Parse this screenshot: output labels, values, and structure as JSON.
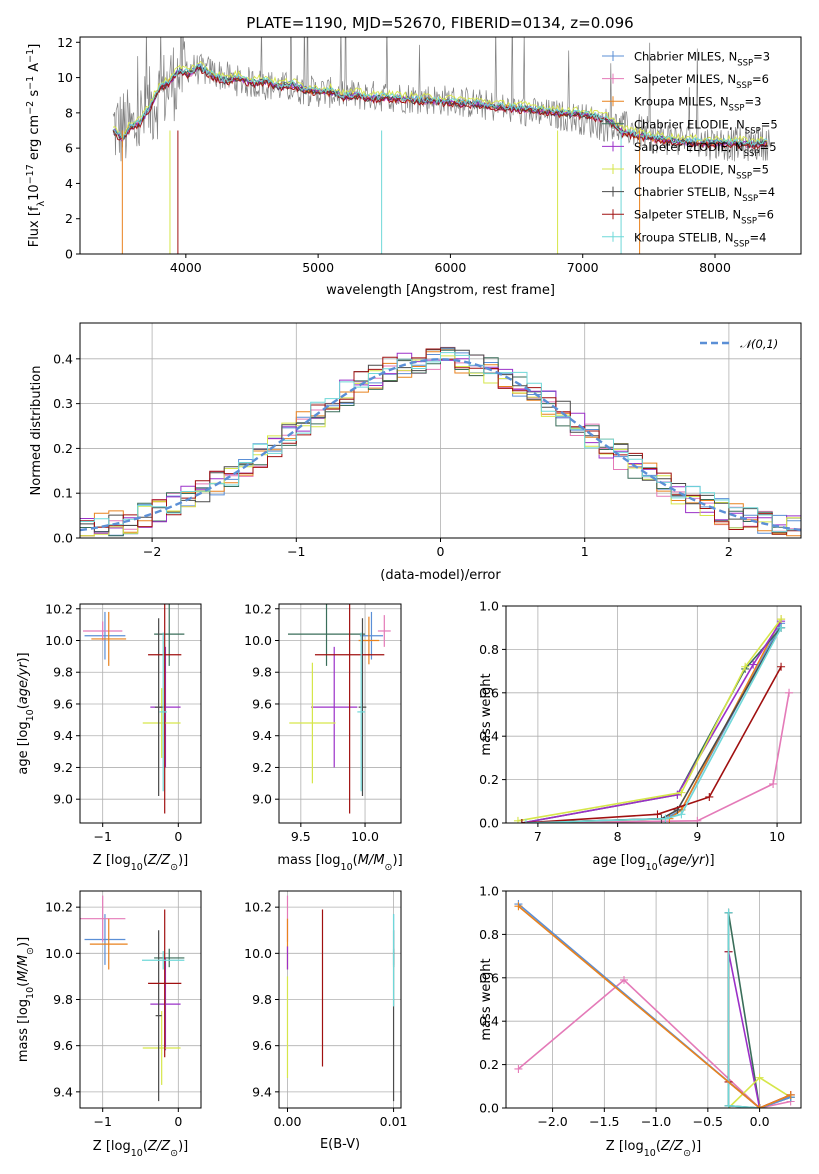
{
  "page_title": "PLATE=1190, MJD=52670, FIBERID=0134, z=0.096",
  "colors": {
    "Chabrier MILES": "#5b8fd6",
    "Salpeter MILES": "#e47ab8",
    "Kroupa MILES": "#e8821e",
    "Chabrier ELODIE": "#3a6e5a",
    "Salpeter ELODIE": "#9b30c8",
    "Kroupa ELODIE": "#d6e64a",
    "Chabrier STELIB": "#4a4a4a",
    "Salpeter STELIB": "#a01010",
    "Kroupa STELIB": "#6fd8d8"
  },
  "legend_labels": [
    {
      "name": "Chabrier MILES",
      "pre": "Chabrier MILES, N",
      "n": "3"
    },
    {
      "name": "Salpeter MILES",
      "pre": "Salpeter MILES, N",
      "n": "6"
    },
    {
      "name": "Kroupa MILES",
      "pre": "Kroupa MILES, N",
      "n": "3"
    },
    {
      "name": "Chabrier ELODIE",
      "pre": "Chabrier ELODIE, N",
      "n": "5"
    },
    {
      "name": "Salpeter ELODIE",
      "pre": "Salpeter ELODIE, N",
      "n": "5"
    },
    {
      "name": "Kroupa ELODIE",
      "pre": "Kroupa ELODIE, N",
      "n": "5"
    },
    {
      "name": "Chabrier STELIB",
      "pre": "Chabrier STELIB, N",
      "n": "4"
    },
    {
      "name": "Salpeter STELIB",
      "pre": "Salpeter STELIB, N",
      "n": "6"
    },
    {
      "name": "Kroupa STELIB",
      "pre": "Kroupa STELIB, N",
      "n": "4"
    }
  ],
  "chart_data": [
    {
      "id": "spectrum",
      "type": "line",
      "title": "PLATE=1190, MJD=52670, FIBERID=0134, z=0.096",
      "xlabel": "wavelength [Angstrom, rest frame]",
      "ylabel": "Flux [f_λ 10^-17 erg cm^-2 s^-1 A^-1]",
      "xlim": [
        3200,
        8650
      ],
      "ylim": [
        0,
        12.3
      ],
      "xticks": [
        4000,
        5000,
        6000,
        7000,
        8000
      ],
      "yticks": [
        0,
        2,
        4,
        6,
        8,
        10,
        12
      ],
      "data_envelope": {
        "x": [
          3450,
          3600,
          3800,
          4000,
          4200,
          4400,
          4600,
          4800,
          5000,
          5300,
          5600,
          6000,
          6300,
          6600,
          6900,
          7200,
          7400,
          7600,
          7800,
          8000,
          8200,
          8400
        ],
        "y": [
          7.2,
          7.0,
          9.0,
          10.6,
          10.3,
          9.8,
          9.6,
          9.4,
          9.2,
          9.0,
          8.9,
          8.7,
          8.4,
          8.0,
          7.8,
          7.3,
          7.0,
          6.6,
          6.4,
          6.3,
          6.2,
          6.3
        ]
      },
      "model_x": [
        3450,
        3520,
        3580,
        3650,
        3720,
        3800,
        3870,
        3950,
        4020,
        4100,
        4200,
        4300,
        4400,
        4500,
        4600,
        4700,
        4800,
        4900,
        5000,
        5100,
        5200,
        5300,
        5400,
        5500,
        5600,
        5800,
        6000,
        6200,
        6400,
        6600,
        6800,
        7000,
        7200,
        7300,
        7500,
        7700,
        7900,
        8100,
        8300,
        8400
      ],
      "model_y": [
        7.0,
        6.5,
        7.2,
        7.4,
        8.2,
        9.4,
        9.7,
        10.4,
        10.2,
        10.6,
        10.1,
        9.8,
        10.0,
        9.7,
        9.8,
        9.5,
        9.6,
        9.3,
        9.2,
        9.2,
        8.9,
        9.0,
        8.8,
        8.9,
        8.8,
        8.7,
        8.6,
        8.5,
        8.3,
        8.2,
        8.0,
        7.9,
        7.6,
        6.9,
        6.6,
        6.4,
        6.3,
        6.3,
        6.2,
        6.3
      ],
      "model_offsets": {
        "Chabrier MILES": 0.05,
        "Salpeter MILES": -0.05,
        "Kroupa MILES": 0.0,
        "Chabrier ELODIE": 0.02,
        "Salpeter ELODIE": -0.02,
        "Kroupa ELODIE": 0.25,
        "Chabrier STELIB": -0.04,
        "Salpeter STELIB": -0.1,
        "Kroupa STELIB": 0.08
      }
    },
    {
      "id": "residuals",
      "type": "line",
      "xlabel": "(data-model)/error",
      "ylabel": "Normed distribution",
      "xlim": [
        -2.5,
        2.5
      ],
      "ylim": [
        0,
        0.48
      ],
      "xticks": [
        -2,
        -1,
        0,
        1,
        2
      ],
      "yticks": [
        0.0,
        0.1,
        0.2,
        0.3,
        0.4
      ],
      "legend": "𝒩(0,1)",
      "bin_edges_start": -2.5,
      "bin_width": 0.1
    },
    {
      "id": "age_vs_Z",
      "type": "scatter",
      "xlabel": "Z [log10(Z/Z⊙)]",
      "ylabel": "age  [log10(age/yr)]",
      "xlim": [
        -1.3,
        0.3
      ],
      "ylim": [
        8.85,
        10.23
      ],
      "xticks": [
        -1,
        0
      ],
      "yticks": [
        9.0,
        9.2,
        9.4,
        9.6,
        9.8,
        10.0,
        10.2
      ],
      "points": [
        {
          "name": "Chabrier MILES",
          "x": -0.97,
          "y": 10.03,
          "xerr": 0.27,
          "yerr": 0.15
        },
        {
          "name": "Salpeter MILES",
          "x": -1.0,
          "y": 10.06,
          "xerr": 0.26,
          "yerr": 0.06
        },
        {
          "name": "Kroupa MILES",
          "x": -0.92,
          "y": 10.01,
          "xerr": 0.23,
          "yerr": 0.17
        },
        {
          "name": "Chabrier ELODIE",
          "x": -0.12,
          "y": 10.04,
          "xerr": 0.2,
          "yerr": 0.2
        },
        {
          "name": "Salpeter ELODIE",
          "x": -0.17,
          "y": 9.58,
          "xerr": 0.2,
          "yerr": 0.38
        },
        {
          "name": "Kroupa ELODIE",
          "x": -0.22,
          "y": 9.48,
          "xerr": 0.25,
          "yerr": 0.22
        },
        {
          "name": "Chabrier STELIB",
          "x": -0.26,
          "y": 9.58,
          "xerr": 0.05,
          "yerr": 0.56
        },
        {
          "name": "Salpeter STELIB",
          "x": -0.18,
          "y": 9.91,
          "xerr": 0.22,
          "yerr": 1.0
        },
        {
          "name": "Kroupa STELIB",
          "x": -0.2,
          "y": 9.55,
          "xerr": 0.05,
          "yerr": 0.5
        }
      ]
    },
    {
      "id": "age_vs_mass",
      "type": "scatter",
      "xlabel": "mass [log10(M/M⊙)]",
      "ylabel": "",
      "xlim": [
        9.33,
        10.28
      ],
      "ylim": [
        8.85,
        10.23
      ],
      "xticks": [
        9.5,
        10.0
      ],
      "yticks": [
        9.0,
        9.2,
        9.4,
        9.6,
        9.8,
        10.0,
        10.2
      ],
      "points": [
        {
          "name": "Chabrier MILES",
          "x": 10.05,
          "y": 10.03,
          "xerr": 0.09,
          "yerr": 0.15
        },
        {
          "name": "Salpeter MILES",
          "x": 10.15,
          "y": 10.06,
          "xerr": 0.05,
          "yerr": 0.1
        },
        {
          "name": "Kroupa MILES",
          "x": 10.03,
          "y": 10.0,
          "xerr": 0.08,
          "yerr": 0.15
        },
        {
          "name": "Chabrier ELODIE",
          "x": 9.7,
          "y": 10.04,
          "xerr": 0.3,
          "yerr": 0.2
        },
        {
          "name": "Salpeter ELODIE",
          "x": 9.76,
          "y": 9.58,
          "xerr": 0.18,
          "yerr": 0.38
        },
        {
          "name": "Kroupa ELODIE",
          "x": 9.59,
          "y": 9.48,
          "xerr": 0.18,
          "yerr": 0.38
        },
        {
          "name": "Chabrier STELIB",
          "x": 9.98,
          "y": 9.58,
          "xerr": 0.03,
          "yerr": 0.56
        },
        {
          "name": "Salpeter STELIB",
          "x": 9.88,
          "y": 9.91,
          "xerr": 0.27,
          "yerr": 1.0
        },
        {
          "name": "Kroupa STELIB",
          "x": 9.97,
          "y": 9.55,
          "xerr": 0.03,
          "yerr": 0.5
        }
      ]
    },
    {
      "id": "mass_weight_vs_age",
      "type": "line",
      "xlabel": "age  [log10(age/yr)]",
      "ylabel": "mass weight",
      "xlim": [
        6.6,
        10.3
      ],
      "ylim": [
        0,
        1.0
      ],
      "xticks": [
        7,
        8,
        9,
        10
      ],
      "yticks": [
        0.0,
        0.2,
        0.4,
        0.6,
        0.8,
        1.0
      ],
      "series": [
        {
          "name": "Chabrier MILES",
          "x": [
            6.8,
            8.6,
            8.8,
            10.05
          ],
          "y": [
            0.0,
            0.02,
            0.06,
            0.92
          ]
        },
        {
          "name": "Salpeter MILES",
          "x": [
            6.8,
            9.0,
            9.95,
            10.15
          ],
          "y": [
            0.0,
            0.01,
            0.18,
            0.6
          ]
        },
        {
          "name": "Kroupa MILES",
          "x": [
            6.8,
            8.65,
            8.8,
            10.05
          ],
          "y": [
            0.0,
            0.02,
            0.06,
            0.94
          ]
        },
        {
          "name": "Chabrier ELODIE",
          "x": [
            6.8,
            8.75,
            9.6,
            10.05
          ],
          "y": [
            0.0,
            0.13,
            0.71,
            0.9
          ]
        },
        {
          "name": "Salpeter ELODIE",
          "x": [
            6.8,
            8.75,
            9.7,
            10.05
          ],
          "y": [
            0.0,
            0.13,
            0.73,
            0.93
          ]
        },
        {
          "name": "Kroupa ELODIE",
          "x": [
            6.75,
            8.8,
            9.6,
            10.05
          ],
          "y": [
            0.01,
            0.14,
            0.72,
            0.94
          ]
        },
        {
          "name": "Chabrier STELIB",
          "x": [
            6.8,
            8.55,
            8.75,
            10.05
          ],
          "y": [
            0.0,
            0.02,
            0.06,
            0.9
          ]
        },
        {
          "name": "Salpeter STELIB",
          "x": [
            6.8,
            8.5,
            9.15,
            10.05
          ],
          "y": [
            0.0,
            0.04,
            0.12,
            0.72
          ]
        },
        {
          "name": "Kroupa STELIB",
          "x": [
            6.85,
            8.6,
            8.8,
            10.05
          ],
          "y": [
            0.0,
            0.02,
            0.04,
            0.9
          ]
        }
      ]
    },
    {
      "id": "mass_vs_Z",
      "type": "scatter",
      "xlabel": "Z [log10(Z/Z⊙)]",
      "ylabel": "mass [log10(M/M⊙)]",
      "xlim": [
        -1.3,
        0.3
      ],
      "ylim": [
        9.33,
        10.27
      ],
      "xticks": [
        -1,
        0
      ],
      "yticks": [
        9.4,
        9.6,
        9.8,
        10.0,
        10.2
      ],
      "points": [
        {
          "name": "Chabrier MILES",
          "x": -0.97,
          "y": 10.06,
          "xerr": 0.27,
          "yerr": 0.11
        },
        {
          "name": "Salpeter MILES",
          "x": -1.0,
          "y": 10.15,
          "xerr": 0.3,
          "yerr": 0.1
        },
        {
          "name": "Kroupa MILES",
          "x": -0.92,
          "y": 10.04,
          "xerr": 0.25,
          "yerr": 0.11
        },
        {
          "name": "Chabrier ELODIE",
          "x": -0.12,
          "y": 9.98,
          "xerr": 0.2,
          "yerr": 0.04
        },
        {
          "name": "Salpeter ELODIE",
          "x": -0.17,
          "y": 9.78,
          "xerr": 0.2,
          "yerr": 0.2
        },
        {
          "name": "Kroupa ELODIE",
          "x": -0.22,
          "y": 9.59,
          "xerr": 0.25,
          "yerr": 0.16
        },
        {
          "name": "Chabrier STELIB",
          "x": -0.26,
          "y": 9.73,
          "xerr": 0.04,
          "yerr": 0.37
        },
        {
          "name": "Salpeter STELIB",
          "x": -0.18,
          "y": 9.87,
          "xerr": 0.22,
          "yerr": 0.32
        },
        {
          "name": "Kroupa STELIB",
          "x": -0.2,
          "y": 9.97,
          "xerr": 0.28,
          "yerr": 0.04
        }
      ]
    },
    {
      "id": "mass_vs_ebv",
      "type": "scatter",
      "xlabel": "E(B-V)",
      "ylabel": "",
      "xlim": [
        -0.0008,
        0.0107
      ],
      "ylim": [
        9.33,
        10.27
      ],
      "xticks": [
        0.0,
        0.01
      ],
      "xtick_labels": [
        "0.00",
        "0.01"
      ],
      "yticks": [
        9.4,
        9.6,
        9.8,
        10.0,
        10.2
      ],
      "points": [
        {
          "name": "Chabrier MILES",
          "x": 0.01,
          "y": 10.06,
          "xerr": 0,
          "yerr": 0.11
        },
        {
          "name": "Salpeter MILES",
          "x": 0.0,
          "y": 10.15,
          "xerr": 0,
          "yerr": 0.1
        },
        {
          "name": "Kroupa MILES",
          "x": 0.0,
          "y": 10.04,
          "xerr": 0,
          "yerr": 0.11
        },
        {
          "name": "Chabrier ELODIE",
          "x": 0.01,
          "y": 9.98,
          "xerr": 0,
          "yerr": 0.04
        },
        {
          "name": "Salpeter ELODIE",
          "x": 0.0,
          "y": 9.98,
          "xerr": 0,
          "yerr": 0.05
        },
        {
          "name": "Kroupa ELODIE",
          "x": 0.0,
          "y": 9.68,
          "xerr": 0,
          "yerr": 0.22
        },
        {
          "name": "Chabrier STELIB",
          "x": 0.01,
          "y": 9.73,
          "xerr": 0,
          "yerr": 0.37
        },
        {
          "name": "Salpeter STELIB",
          "x": 0.0033,
          "y": 9.85,
          "xerr": 0,
          "yerr": 0.34
        },
        {
          "name": "Kroupa STELIB",
          "x": 0.01,
          "y": 9.97,
          "xerr": 0,
          "yerr": 0.2
        }
      ]
    },
    {
      "id": "mass_weight_vs_Z",
      "type": "line",
      "xlabel": "Z [log10(Z/Z⊙)]",
      "ylabel": "mass weight",
      "xlim": [
        -2.45,
        0.4
      ],
      "ylim": [
        0,
        1.0
      ],
      "xticks": [
        -2.0,
        -1.5,
        -1.0,
        -0.5,
        0.0
      ],
      "yticks": [
        0.0,
        0.2,
        0.4,
        0.6,
        0.8,
        1.0
      ],
      "series": [
        {
          "name": "Salpeter MILES",
          "x": [
            -2.33,
            -1.31,
            0.0,
            0.3
          ],
          "y": [
            0.18,
            0.59,
            0.0,
            0.03
          ]
        },
        {
          "name": "Chabrier ELODIE",
          "x": [
            -0.3,
            0.0,
            0.3
          ],
          "y": [
            0.9,
            0.0,
            0.05
          ]
        },
        {
          "name": "Salpeter ELODIE",
          "x": [
            -0.3,
            0.0,
            0.3
          ],
          "y": [
            0.72,
            0.0,
            0.06
          ]
        },
        {
          "name": "Kroupa ELODIE",
          "x": [
            -0.3,
            -0.3,
            0.0,
            0.3
          ],
          "y": [
            0.0,
            0.0,
            0.14,
            0.05
          ]
        },
        {
          "name": "Chabrier STELIB",
          "x": [
            -0.3,
            -0.3,
            0.0,
            0.3
          ],
          "y": [
            0.9,
            0.01,
            0.0,
            0.05
          ]
        },
        {
          "name": "Salpeter STELIB",
          "x": [
            -0.3,
            -0.3,
            0.0,
            0.3
          ],
          "y": [
            0.72,
            0.12,
            0.0,
            0.06
          ]
        },
        {
          "name": "Kroupa STELIB",
          "x": [
            -0.3,
            -0.3,
            0.0,
            0.3
          ],
          "y": [
            0.9,
            0.01,
            0.0,
            0.05
          ]
        },
        {
          "name": "Chabrier MILES",
          "x": [
            -2.33,
            0.0,
            0.3
          ],
          "y": [
            0.94,
            0.0,
            0.05
          ]
        },
        {
          "name": "Kroupa MILES",
          "x": [
            -2.33,
            0.0,
            0.3
          ],
          "y": [
            0.93,
            0.0,
            0.06
          ]
        }
      ]
    }
  ]
}
